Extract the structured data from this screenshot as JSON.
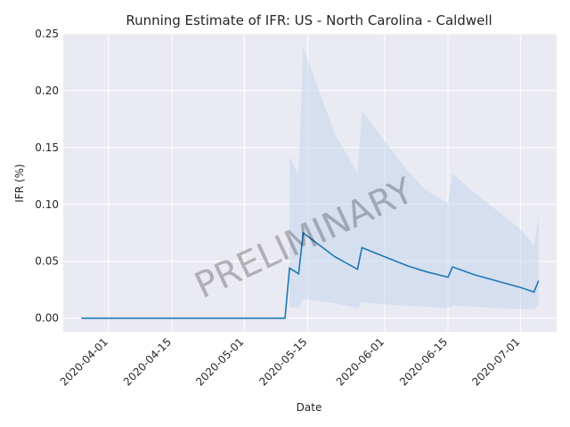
{
  "chart_data": {
    "type": "line",
    "title": "Running Estimate of IFR: US - North Carolina - Caldwell",
    "xlabel": "Date",
    "ylabel": "IFR (%)",
    "watermark": "PRELIMINARY",
    "grid": true,
    "x_start": "2020-03-26",
    "x_end": "2020-07-05",
    "xlim": [
      "2020-03-22",
      "2020-07-09"
    ],
    "ylim": [
      -0.012,
      0.25
    ],
    "x_ticks": [
      "2020-04-01",
      "2020-04-15",
      "2020-05-01",
      "2020-05-15",
      "2020-06-01",
      "2020-06-15",
      "2020-07-01"
    ],
    "y_ticks": [
      "0.00",
      "0.05",
      "0.10",
      "0.15",
      "0.20",
      "0.25"
    ],
    "colors": {
      "line": "#1f77b4",
      "band": "#bcd3ea",
      "background": "#eaeaf2",
      "grid": "#ffffff"
    },
    "series": [
      {
        "type": "line",
        "points": [
          [
            "2020-03-26",
            0.0
          ],
          [
            "2020-05-10",
            0.0
          ],
          [
            "2020-05-11",
            0.044
          ],
          [
            "2020-05-13",
            0.039
          ],
          [
            "2020-05-14",
            0.075
          ],
          [
            "2020-05-21",
            0.054
          ],
          [
            "2020-05-26",
            0.043
          ],
          [
            "2020-05-27",
            0.062
          ],
          [
            "2020-06-01",
            0.054
          ],
          [
            "2020-06-06",
            0.046
          ],
          [
            "2020-06-10",
            0.041
          ],
          [
            "2020-06-15",
            0.036
          ],
          [
            "2020-06-16",
            0.045
          ],
          [
            "2020-06-21",
            0.038
          ],
          [
            "2020-07-01",
            0.027
          ],
          [
            "2020-07-04",
            0.023
          ],
          [
            "2020-07-05",
            0.033
          ]
        ]
      },
      {
        "type": "band",
        "upper": [
          [
            "2020-05-11",
            0.142
          ],
          [
            "2020-05-13",
            0.126
          ],
          [
            "2020-05-14",
            0.238
          ],
          [
            "2020-05-21",
            0.162
          ],
          [
            "2020-05-26",
            0.128
          ],
          [
            "2020-05-27",
            0.182
          ],
          [
            "2020-06-01",
            0.156
          ],
          [
            "2020-06-06",
            0.13
          ],
          [
            "2020-06-10",
            0.113
          ],
          [
            "2020-06-15",
            0.101
          ],
          [
            "2020-06-16",
            0.127
          ],
          [
            "2020-06-21",
            0.11
          ],
          [
            "2020-07-01",
            0.078
          ],
          [
            "2020-07-04",
            0.064
          ],
          [
            "2020-07-05",
            0.09
          ]
        ],
        "lower": [
          [
            "2020-05-11",
            0.01
          ],
          [
            "2020-05-13",
            0.009
          ],
          [
            "2020-05-14",
            0.017
          ],
          [
            "2020-05-21",
            0.013
          ],
          [
            "2020-05-26",
            0.009
          ],
          [
            "2020-05-27",
            0.014
          ],
          [
            "2020-06-01",
            0.012
          ],
          [
            "2020-06-06",
            0.011
          ],
          [
            "2020-06-10",
            0.01
          ],
          [
            "2020-06-15",
            0.009
          ],
          [
            "2020-06-16",
            0.011
          ],
          [
            "2020-06-21",
            0.01
          ],
          [
            "2020-07-01",
            0.008
          ],
          [
            "2020-07-04",
            0.008
          ],
          [
            "2020-07-05",
            0.012
          ]
        ]
      }
    ]
  }
}
